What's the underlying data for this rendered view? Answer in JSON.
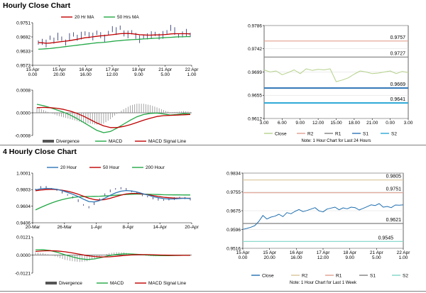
{
  "sections": [
    {
      "title": "Hourly Close Chart"
    },
    {
      "title": "4 Hourly Close Chart"
    }
  ],
  "chart_data": [
    {
      "id": "hourly-price",
      "type": "line",
      "legend": [
        {
          "name": "20 Hr MA",
          "color": "#c00000"
        },
        {
          "name": "50 Hrs MA",
          "color": "#22a845"
        }
      ],
      "y_ticks": [
        "0.9751",
        "0.9692",
        "0.9633",
        "0.9573"
      ],
      "ylim": [
        0.9573,
        0.9751
      ],
      "x_ticks": [
        [
          "15 Apr",
          "0.00"
        ],
        [
          "15 Apr",
          "20.00"
        ],
        [
          "16 Apr",
          "16.00"
        ],
        [
          "17 Apr",
          "12.00"
        ],
        [
          "18 Apr",
          "9.00"
        ],
        [
          "21 Apr",
          "5.00"
        ],
        [
          "22 Apr",
          "1.00"
        ]
      ],
      "series": [
        {
          "name": "Close",
          "color": "#1f2a6b",
          "values": [
            0.9668,
            0.9671,
            0.9664,
            0.9688,
            0.9676,
            0.9693,
            0.9684,
            0.9668,
            0.9691,
            0.9702,
            0.9688,
            0.9697,
            0.9706,
            0.9699,
            0.9693,
            0.9709,
            0.9699,
            0.9685,
            0.9708,
            0.9724,
            0.9716,
            0.973,
            0.9706,
            0.9702,
            0.9711,
            0.9696,
            0.9682,
            0.9691,
            0.9694,
            0.9699,
            0.9704,
            0.9693,
            0.97,
            0.9711,
            0.9729,
            0.9716,
            0.9697,
            0.9702,
            0.9709,
            0.97
          ]
        },
        {
          "name": "20 Hr MA",
          "color": "#c00000",
          "values": [
            0.9668,
            0.9667,
            0.9665,
            0.9666,
            0.9668,
            0.967,
            0.9672,
            0.9674,
            0.9676,
            0.9679,
            0.9682,
            0.9685,
            0.9688,
            0.969,
            0.9692,
            0.9694,
            0.9696,
            0.9697,
            0.9699,
            0.9701,
            0.9703,
            0.9705,
            0.9706,
            0.9706,
            0.9705,
            0.9703,
            0.9701,
            0.97,
            0.9699,
            0.9699,
            0.97,
            0.97,
            0.9701,
            0.9702,
            0.9704,
            0.9705,
            0.9705,
            0.9705,
            0.9705,
            0.9704
          ]
        },
        {
          "name": "50 Hrs MA",
          "color": "#22a845",
          "values": [
            0.964,
            0.9641,
            0.9642,
            0.9643,
            0.9645,
            0.9647,
            0.9649,
            0.9651,
            0.9653,
            0.9655,
            0.9657,
            0.9659,
            0.9661,
            0.9663,
            0.9665,
            0.9667,
            0.9668,
            0.9669,
            0.9671,
            0.9673,
            0.9675,
            0.9676,
            0.9678,
            0.9679,
            0.968,
            0.9681,
            0.9682,
            0.9683,
            0.9684,
            0.9685,
            0.9686,
            0.9687,
            0.9688,
            0.9689,
            0.969,
            0.9691,
            0.9692,
            0.9692,
            0.9693,
            0.9693
          ]
        }
      ]
    },
    {
      "id": "hourly-macd",
      "type": "line",
      "legend": [
        {
          "name": "Divergence",
          "color": "#555555"
        },
        {
          "name": "MACD",
          "color": "#22a845"
        },
        {
          "name": "MACD Signal Line",
          "color": "#c00000"
        }
      ],
      "y_ticks": [
        "0.0008",
        "0.0000",
        "-0.0008"
      ],
      "ylim": [
        -0.0008,
        0.0008
      ],
      "series": [
        {
          "name": "MACD",
          "color": "#22a845",
          "values": [
            0.0003,
            0.00025,
            0.00018,
            0.0001,
            2e-05,
            -8e-05,
            -0.0002,
            -0.00034,
            -0.00048,
            -0.00062,
            -0.0007,
            -0.00066,
            -0.00054,
            -0.0004,
            -0.00026,
            -0.00014,
            -6e-05,
            -2e-05,
            -1e-05,
            -4e-05,
            -8e-05,
            -6e-05,
            -3e-05,
            -4e-05
          ]
        },
        {
          "name": "MACD Signal Line",
          "color": "#c00000",
          "values": [
            0.00018,
            0.00019,
            0.00018,
            0.00016,
            0.00012,
            6e-05,
            -2e-05,
            -0.00012,
            -0.00024,
            -0.00036,
            -0.00046,
            -0.00052,
            -0.00052,
            -0.00048,
            -0.00042,
            -0.00034,
            -0.00026,
            -0.00019,
            -0.00013,
            -0.0001,
            -9e-05,
            -8e-05,
            -7e-05,
            -6e-05
          ]
        }
      ]
    },
    {
      "id": "hourly-levels",
      "type": "line",
      "y_ticks": [
        "0.9786",
        "0.9742",
        "0.9699",
        "0.9655",
        "0.9612"
      ],
      "ylim": [
        0.9612,
        0.9786
      ],
      "x_ticks": [
        "3.00",
        "6.00",
        "9.00",
        "12.00",
        "15.00",
        "18.00",
        "21.00",
        "0.00",
        "3.00"
      ],
      "levels": [
        {
          "name": "R2",
          "value": 0.9757,
          "label": "0.9757",
          "color": "#e0a090"
        },
        {
          "name": "R1",
          "value": 0.9727,
          "label": "0.9727",
          "color": "#7f7f7f"
        },
        {
          "name": "S1",
          "value": 0.9669,
          "label": "0.9669",
          "color": "#2e75b6"
        },
        {
          "name": "S2",
          "value": 0.9641,
          "label": "0.9641",
          "color": "#2aa7d6"
        }
      ],
      "series": [
        {
          "name": "Close",
          "color": "#b5d28a",
          "values": [
            0.9703,
            0.9699,
            0.9701,
            0.9694,
            0.9698,
            0.9703,
            0.9696,
            0.9705,
            0.9702,
            0.9704,
            0.9703,
            0.9705,
            0.9681,
            0.9684,
            0.9688,
            0.9695,
            0.9701,
            0.9699,
            0.9696,
            0.9697,
            0.9699,
            0.9701,
            0.9696,
            0.97,
            0.9698
          ]
        }
      ],
      "legend": [
        {
          "name": "Close",
          "color": "#b5d28a"
        },
        {
          "name": "R2",
          "color": "#e0a090"
        },
        {
          "name": "R1",
          "color": "#7f7f7f"
        },
        {
          "name": "S1",
          "color": "#2e75b6"
        },
        {
          "name": "S2",
          "color": "#2aa7d6"
        }
      ],
      "note": "Note: 1 Hour Chart for Last 24 Hours"
    },
    {
      "id": "4hourly-price",
      "type": "line",
      "legend": [
        {
          "name": "20 Hour",
          "color": "#2e75b6"
        },
        {
          "name": "50 Hour",
          "color": "#c00000"
        },
        {
          "name": "200 Hour",
          "color": "#22a845"
        }
      ],
      "y_ticks": [
        "1.0001",
        "0.9803",
        "0.9604",
        "0.9406"
      ],
      "ylim": [
        0.9406,
        1.0001
      ],
      "x_ticks": [
        "20-Mar",
        "26-Mar",
        "1-Apr",
        "8-Apr",
        "14-Apr",
        "20-Apr"
      ],
      "series": [
        {
          "name": "Close",
          "color": "#1f2a6b",
          "values": [
            0.9805,
            0.9832,
            0.983,
            0.9812,
            0.98,
            0.9773,
            0.974,
            0.9712,
            0.9671,
            0.962,
            0.9592,
            0.9635,
            0.969,
            0.9745,
            0.9788,
            0.9812,
            0.982,
            0.9806,
            0.9781,
            0.976,
            0.9741,
            0.972,
            0.97,
            0.9688,
            0.968,
            0.9686,
            0.9695,
            0.9708,
            0.9702,
            0.969
          ]
        },
        {
          "name": "20 Hour",
          "color": "#2e75b6",
          "values": [
            0.98,
            0.9812,
            0.9818,
            0.9815,
            0.9806,
            0.9791,
            0.977,
            0.9748,
            0.972,
            0.9688,
            0.966,
            0.9656,
            0.9672,
            0.9701,
            0.9735,
            0.9764,
            0.9784,
            0.9792,
            0.9788,
            0.9775,
            0.9757,
            0.9738,
            0.972,
            0.9706,
            0.9696,
            0.9691,
            0.9692,
            0.9697,
            0.9699,
            0.9697
          ]
        },
        {
          "name": "50 Hour",
          "color": "#c00000",
          "values": [
            0.979,
            0.9798,
            0.9804,
            0.9806,
            0.9804,
            0.9796,
            0.9784,
            0.9768,
            0.9748,
            0.9724,
            0.97,
            0.9684,
            0.9678,
            0.9684,
            0.9699,
            0.9718,
            0.9737,
            0.9751,
            0.9758,
            0.9758,
            0.9752,
            0.9743,
            0.9732,
            0.9721,
            0.9712,
            0.9706,
            0.9702,
            0.97,
            0.97,
            0.9699
          ]
        },
        {
          "name": "200 Hour",
          "color": "#22a845",
          "values": [
            0.956,
            0.959,
            0.9618,
            0.9643,
            0.9665,
            0.9683,
            0.9698,
            0.9709,
            0.9716,
            0.972,
            0.9721,
            0.9722,
            0.9724,
            0.9727,
            0.9731,
            0.9736,
            0.9741,
            0.9745,
            0.9748,
            0.9749,
            0.9749,
            0.9748,
            0.9746,
            0.9744,
            0.9742,
            0.9741,
            0.974,
            0.974,
            0.9739,
            0.9739
          ]
        }
      ]
    },
    {
      "id": "4hourly-macd",
      "type": "line",
      "legend": [
        {
          "name": "Divergence",
          "color": "#555555"
        },
        {
          "name": "MACD",
          "color": "#22a845"
        },
        {
          "name": "MACD Signal Line",
          "color": "#c00000"
        }
      ],
      "y_ticks": [
        "0.0121",
        "0.0000",
        "-0.0121"
      ],
      "ylim": [
        -0.0121,
        0.0121
      ],
      "series": [
        {
          "name": "MACD",
          "color": "#22a845",
          "values": [
            0.0035,
            0.0036,
            0.003,
            0.0018,
            0.0002,
            -0.0012,
            -0.0024,
            -0.003,
            -0.0026,
            -0.0016,
            -0.0004,
            0.0004,
            0.0008,
            0.0007,
            0.0004,
            0.0,
            -0.0003,
            -0.0004,
            -0.0004,
            -0.0003,
            -0.0002,
            -0.0001
          ]
        },
        {
          "name": "MACD Signal Line",
          "color": "#c00000",
          "values": [
            0.0024,
            0.0028,
            0.0029,
            0.0027,
            0.0022,
            0.0014,
            0.0005,
            -0.0004,
            -0.001,
            -0.0013,
            -0.0012,
            -0.0008,
            -0.0003,
            0.0001,
            0.0003,
            0.0003,
            0.0002,
            0.0,
            -0.0001,
            -0.0002,
            -0.0002,
            -0.0002
          ]
        }
      ]
    },
    {
      "id": "4hourly-levels",
      "type": "line",
      "y_ticks": [
        "0.9834",
        "0.9755",
        "0.9675",
        "0.9596",
        "0.9516"
      ],
      "ylim": [
        0.9516,
        0.9834
      ],
      "x_ticks": [
        [
          "15 Apr",
          "0.00"
        ],
        [
          "15 Apr",
          "20.00"
        ],
        [
          "16 Apr",
          "16.00"
        ],
        [
          "17 Apr",
          "12.00"
        ],
        [
          "18 Apr",
          "9.00"
        ],
        [
          "21 Apr",
          "5.00"
        ],
        [
          "22 Apr",
          "1.00"
        ]
      ],
      "levels": [
        {
          "name": "R2",
          "value": 0.9805,
          "label": "0.9805",
          "color": "#d9c59a"
        },
        {
          "name": "R1",
          "value": 0.9751,
          "label": "0.9751",
          "color": "#e0a090"
        },
        {
          "name": "S1",
          "value": 0.9621,
          "label": "0.9621",
          "color": "#7f7f7f"
        },
        {
          "name": "S2",
          "value": 0.9545,
          "label": "0.9545",
          "color": "#7fd6c8"
        }
      ],
      "series": [
        {
          "name": "Close",
          "color": "#1f6fb0",
          "values": [
            0.9596,
            0.96,
            0.9605,
            0.9612,
            0.963,
            0.9655,
            0.964,
            0.9648,
            0.9652,
            0.966,
            0.965,
            0.9667,
            0.9662,
            0.9672,
            0.968,
            0.9671,
            0.9676,
            0.9682,
            0.9688,
            0.9674,
            0.967,
            0.9682,
            0.9686,
            0.969,
            0.9679,
            0.9687,
            0.9683,
            0.969,
            0.9688,
            0.9678,
            0.9685,
            0.9692,
            0.97,
            0.9697,
            0.9705,
            0.969,
            0.9693,
            0.9688,
            0.9699,
            0.9698,
            0.97
          ]
        }
      ],
      "legend": [
        {
          "name": "Close",
          "color": "#1f6fb0"
        },
        {
          "name": "R2",
          "color": "#d9c59a"
        },
        {
          "name": "R1",
          "color": "#e0a090"
        },
        {
          "name": "S1",
          "color": "#7f7f7f"
        },
        {
          "name": "S2",
          "color": "#7fd6c8"
        }
      ],
      "note": "Note: 1 Hour Chart for Last 1 Week"
    }
  ]
}
